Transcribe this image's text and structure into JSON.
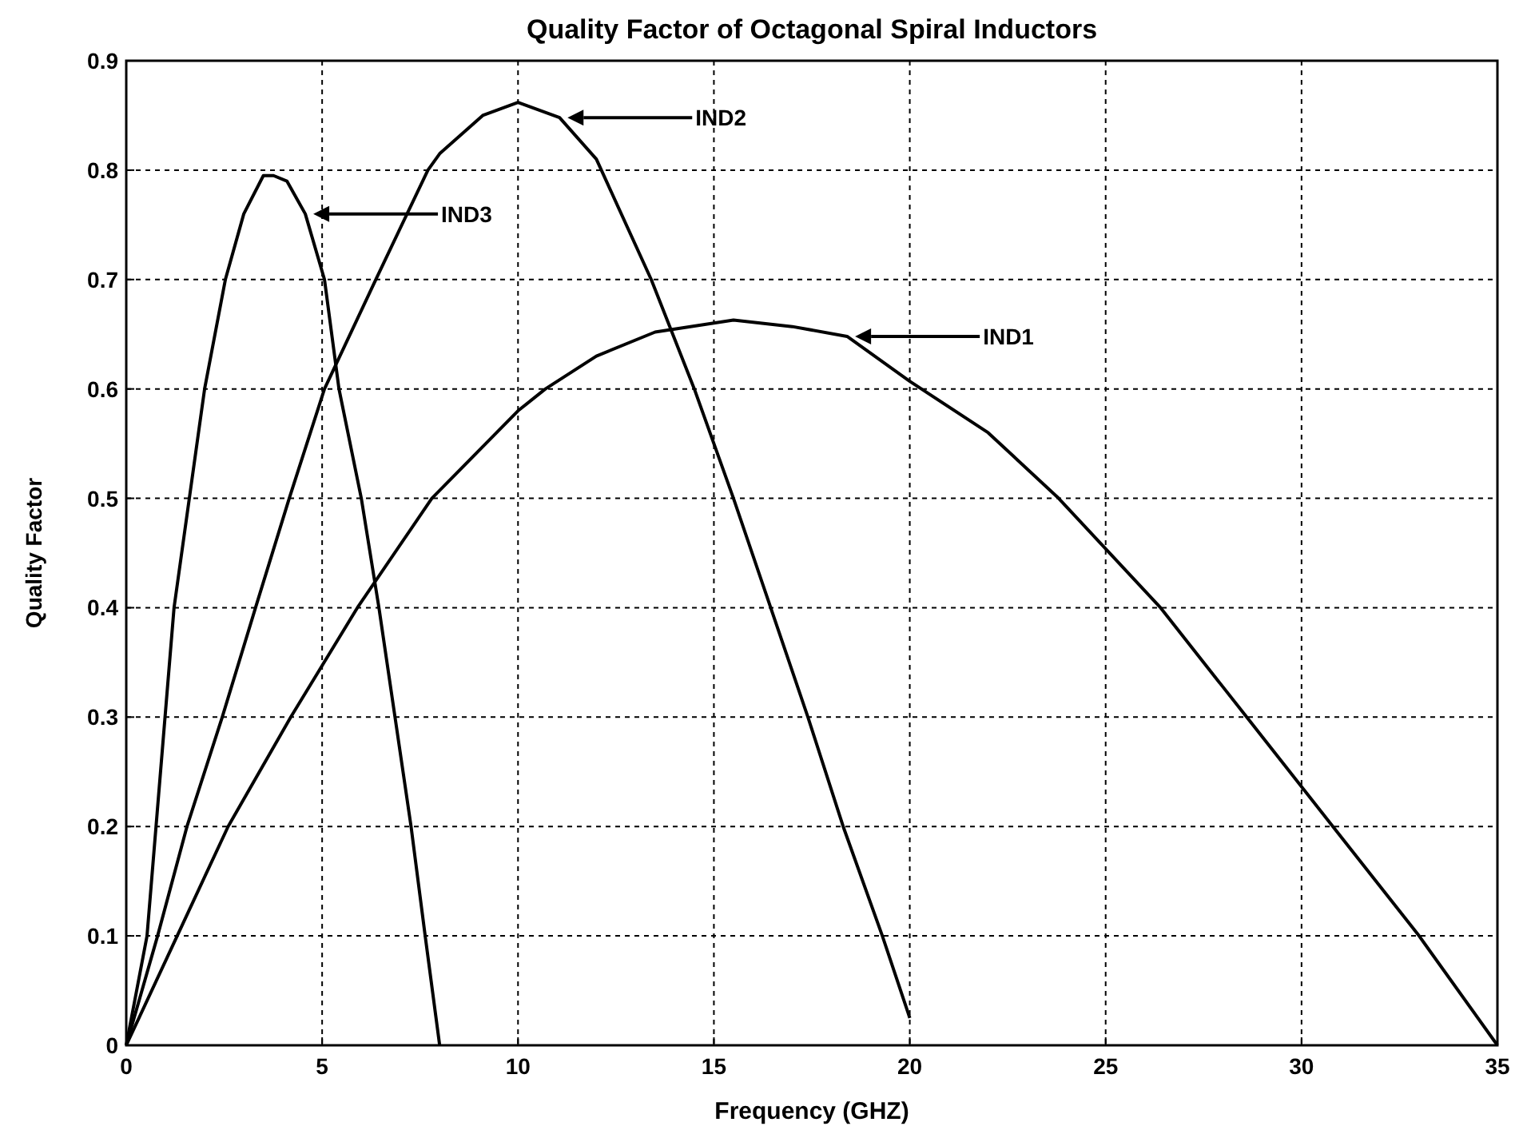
{
  "chart_data": {
    "type": "line",
    "title": "Quality Factor of Octagonal Spiral Inductors",
    "xlabel": "Frequency (GHZ)",
    "ylabel": "Quality Factor",
    "xlim": [
      0,
      35
    ],
    "xticks": [
      0,
      5,
      10,
      15,
      20,
      25,
      30,
      35
    ],
    "ylim": [
      0,
      0.9
    ],
    "yticks": [
      0,
      0.1,
      0.2,
      0.3,
      0.4,
      0.5,
      0.6,
      0.7,
      0.8,
      0.9
    ],
    "grid": true,
    "legend": "top",
    "marker": "none",
    "line_style": "solid",
    "series": [
      {
        "name": "IND1",
        "color": "#000000",
        "x": [
          0,
          1.3,
          2.6,
          4.2,
          5.9,
          7.8,
          10,
          10.7,
          12,
          13.5,
          15.5,
          17,
          18.4,
          20,
          22,
          23.8,
          26.4,
          28.6,
          30.8,
          33,
          35
        ],
        "values": [
          0,
          0.1,
          0.2,
          0.3,
          0.4,
          0.5,
          0.58,
          0.6,
          0.63,
          0.652,
          0.663,
          0.657,
          0.648,
          0.607,
          0.56,
          0.5,
          0.4,
          0.3,
          0.2,
          0.1,
          0
        ]
      },
      {
        "name": "IND2",
        "color": "#000000",
        "x": [
          0,
          0.8,
          1.55,
          2.45,
          3.3,
          4.16,
          5.06,
          6.37,
          7.7,
          8,
          9.1,
          10,
          11.06,
          12,
          13.4,
          14.5,
          15.5,
          16.45,
          17.4,
          18.3,
          19.3,
          20
        ],
        "values": [
          0,
          0.1,
          0.2,
          0.3,
          0.4,
          0.5,
          0.6,
          0.7,
          0.8,
          0.815,
          0.85,
          0.862,
          0.848,
          0.81,
          0.7,
          0.6,
          0.5,
          0.4,
          0.3,
          0.2,
          0.1,
          0.025
        ]
      },
      {
        "name": "IND3",
        "color": "#000000",
        "x": [
          0,
          0.53,
          1.22,
          2,
          2.53,
          3,
          3.5,
          3.76,
          4.1,
          4.57,
          5.06,
          5.43,
          6,
          6.45,
          6.86,
          7.27,
          7.63,
          8
        ],
        "values": [
          0,
          0.1,
          0.4,
          0.6,
          0.7,
          0.76,
          0.795,
          0.795,
          0.79,
          0.76,
          0.7,
          0.6,
          0.5,
          0.4,
          0.3,
          0.2,
          0.1,
          0
        ]
      }
    ]
  }
}
